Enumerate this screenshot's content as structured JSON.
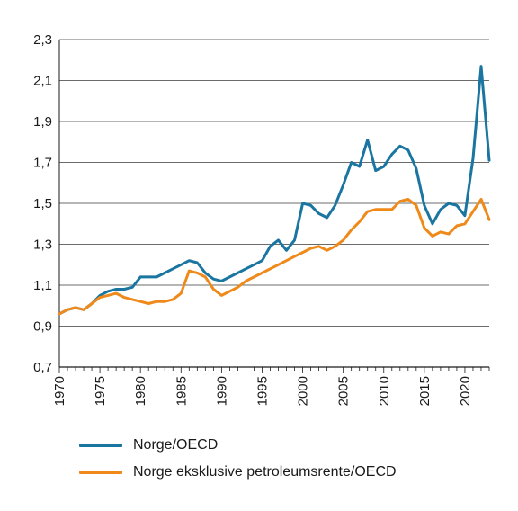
{
  "chart_data": {
    "type": "line",
    "title": "",
    "xlabel": "",
    "ylabel": "",
    "xlim": [
      1970,
      2023
    ],
    "ylim": [
      0.7,
      2.3
    ],
    "yticks": [
      "0,7",
      "0,9",
      "1,1",
      "1,3",
      "1,5",
      "1,7",
      "1,9",
      "2,1",
      "2,3"
    ],
    "xticks": [
      "1970",
      "1975",
      "1980",
      "1985",
      "1990",
      "1995",
      "2000",
      "2005",
      "2010",
      "2015",
      "2020"
    ],
    "grid": "horizontal",
    "legend_position": "bottom",
    "x": [
      1970,
      1971,
      1972,
      1973,
      1974,
      1975,
      1976,
      1977,
      1978,
      1979,
      1980,
      1981,
      1982,
      1983,
      1984,
      1985,
      1986,
      1987,
      1988,
      1989,
      1990,
      1991,
      1992,
      1993,
      1994,
      1995,
      1996,
      1997,
      1998,
      1999,
      2000,
      2001,
      2002,
      2003,
      2004,
      2005,
      2006,
      2007,
      2008,
      2009,
      2010,
      2011,
      2012,
      2013,
      2014,
      2015,
      2016,
      2017,
      2018,
      2019,
      2020,
      2021,
      2022,
      2023
    ],
    "series": [
      {
        "name": "Norge/OECD",
        "color": "#1a75a0",
        "values": [
          0.96,
          0.98,
          0.99,
          0.98,
          1.01,
          1.05,
          1.07,
          1.08,
          1.08,
          1.09,
          1.14,
          1.14,
          1.14,
          1.16,
          1.18,
          1.2,
          1.22,
          1.21,
          1.16,
          1.13,
          1.12,
          1.14,
          1.16,
          1.18,
          1.2,
          1.22,
          1.29,
          1.32,
          1.27,
          1.32,
          1.5,
          1.49,
          1.45,
          1.43,
          1.49,
          1.59,
          1.7,
          1.68,
          1.81,
          1.66,
          1.68,
          1.74,
          1.78,
          1.76,
          1.67,
          1.49,
          1.4,
          1.47,
          1.5,
          1.49,
          1.44,
          1.72,
          2.17,
          1.71
        ]
      },
      {
        "name": "Norge eksklusive petroleumsrente/OECD",
        "color": "#ef8a1a",
        "values": [
          0.96,
          0.98,
          0.99,
          0.98,
          1.01,
          1.04,
          1.05,
          1.06,
          1.04,
          1.03,
          1.02,
          1.01,
          1.02,
          1.02,
          1.03,
          1.06,
          1.17,
          1.16,
          1.14,
          1.08,
          1.05,
          1.07,
          1.09,
          1.12,
          1.14,
          1.16,
          1.18,
          1.2,
          1.22,
          1.24,
          1.26,
          1.28,
          1.29,
          1.27,
          1.29,
          1.32,
          1.37,
          1.41,
          1.46,
          1.47,
          1.47,
          1.47,
          1.51,
          1.52,
          1.49,
          1.38,
          1.34,
          1.36,
          1.35,
          1.39,
          1.4,
          1.46,
          1.52,
          1.42
        ]
      }
    ]
  }
}
